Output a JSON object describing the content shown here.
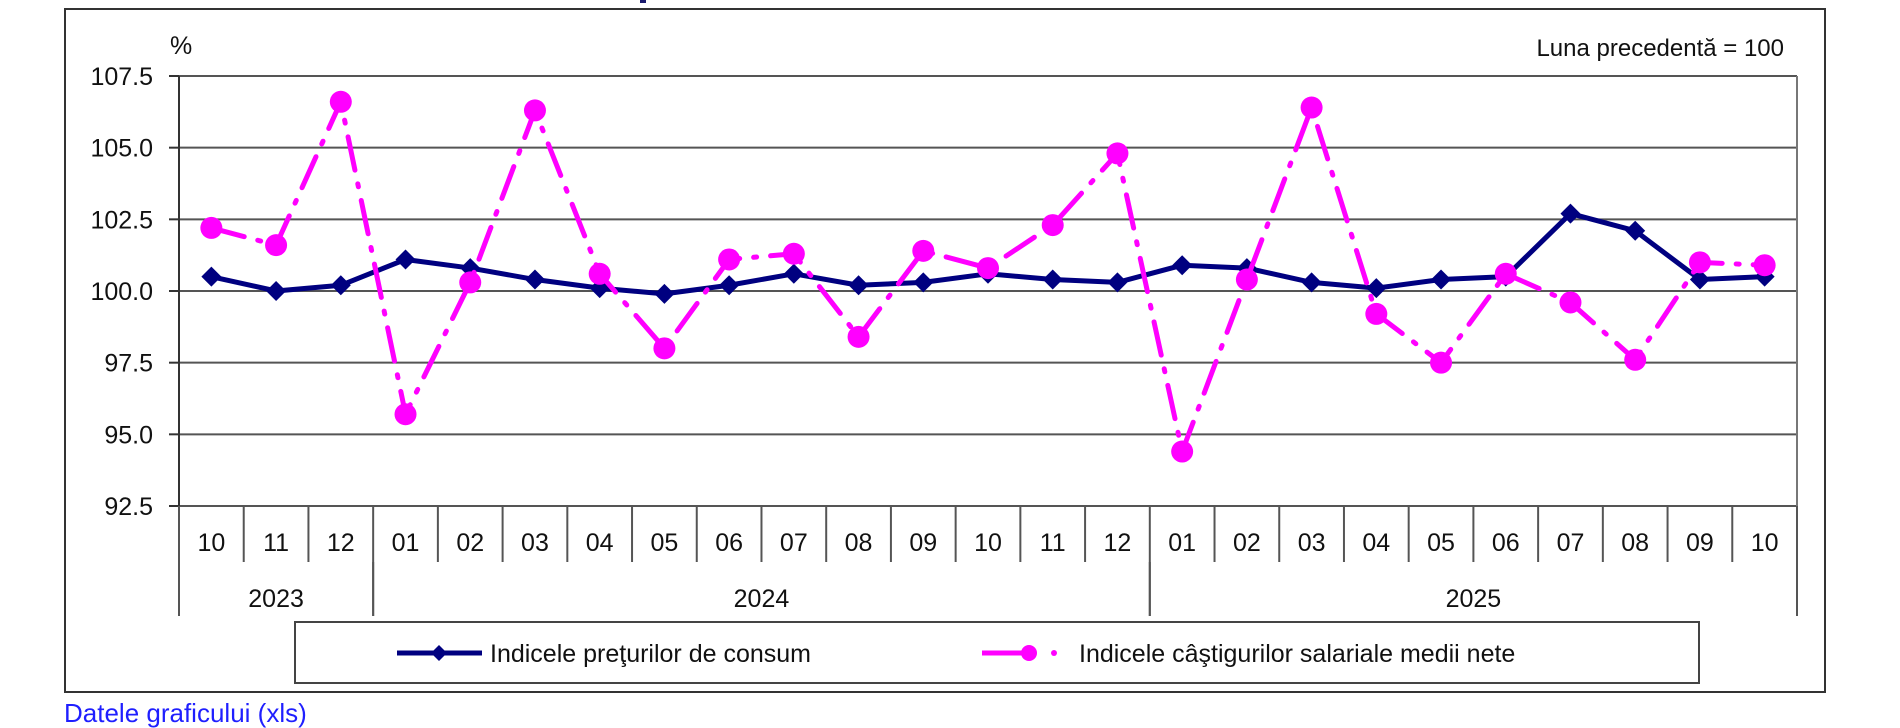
{
  "chart_data": {
    "type": "line",
    "title": "",
    "unit_label": "%",
    "note": "Luna precedentă = 100",
    "xlabel": "",
    "ylabel": "%",
    "ylim": [
      92.5,
      107.5
    ],
    "yticks": [
      "107.5",
      "105.0",
      "102.5",
      "100.0",
      "97.5",
      "95.0",
      "92.5"
    ],
    "ytick_values": [
      107.5,
      105.0,
      102.5,
      100.0,
      97.5,
      95.0,
      92.5
    ],
    "grid": true,
    "legend_position": "bottom",
    "categories": [
      "10",
      "11",
      "12",
      "01",
      "02",
      "03",
      "04",
      "05",
      "06",
      "07",
      "08",
      "09",
      "10",
      "11",
      "12",
      "01",
      "02",
      "03",
      "04",
      "05",
      "06",
      "07",
      "08",
      "09",
      "10"
    ],
    "year_groups": [
      {
        "label": "2023",
        "start": 0,
        "count": 3
      },
      {
        "label": "2024",
        "start": 3,
        "count": 12
      },
      {
        "label": "2025",
        "start": 15,
        "count": 10
      }
    ],
    "series": [
      {
        "name": "Indicele preţurilor de consum",
        "color": "#000080",
        "marker": "diamond",
        "line_style": "solid",
        "values": [
          100.5,
          100.0,
          100.2,
          101.1,
          100.8,
          100.4,
          100.1,
          99.9,
          100.2,
          100.6,
          100.2,
          100.3,
          100.6,
          100.4,
          100.3,
          100.9,
          100.8,
          100.3,
          100.1,
          100.4,
          100.5,
          102.7,
          102.1,
          100.4,
          100.5
        ]
      },
      {
        "name": "Indicele câştigurilor salariale medii nete",
        "color": "#ff00ff",
        "marker": "circle",
        "line_style": "dash-dot",
        "values": [
          102.2,
          101.6,
          106.6,
          95.7,
          100.3,
          106.3,
          100.6,
          98.0,
          101.1,
          101.3,
          98.4,
          101.4,
          100.8,
          102.3,
          104.8,
          94.4,
          100.4,
          106.4,
          99.2,
          97.5,
          100.6,
          99.6,
          97.6,
          101.0,
          100.9
        ]
      }
    ]
  },
  "footer": {
    "link_label": "Datele graficului (xls)"
  }
}
